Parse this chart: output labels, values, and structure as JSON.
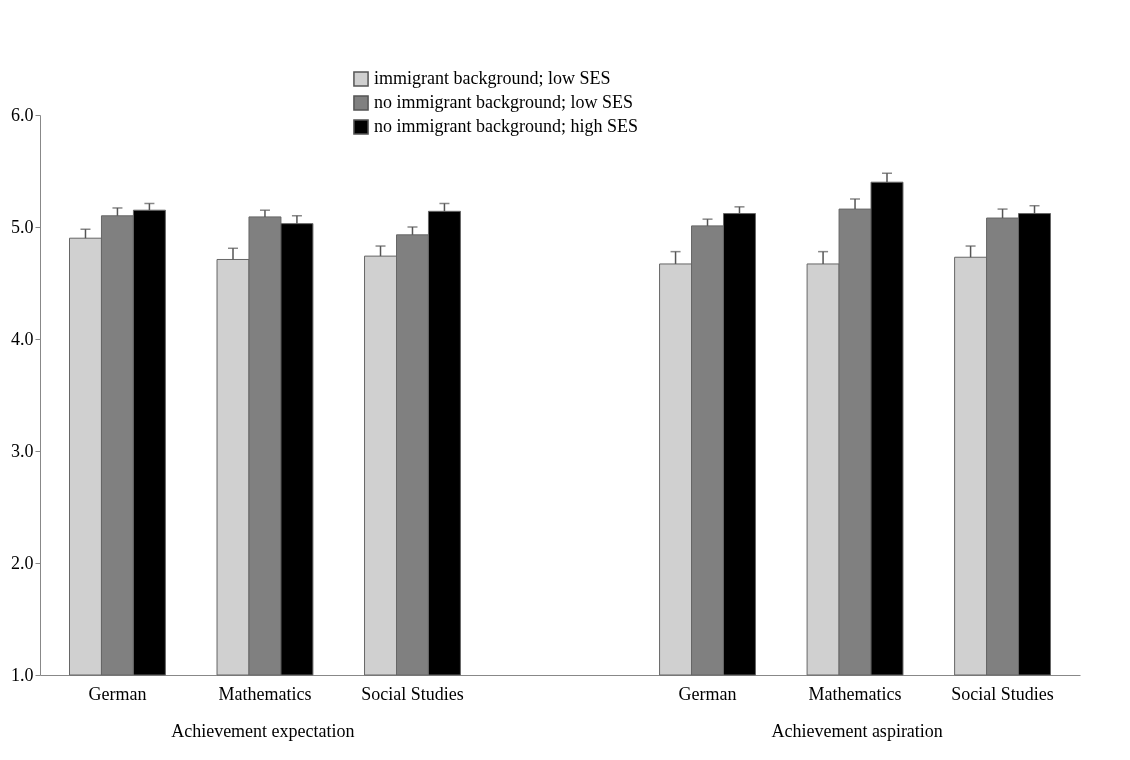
{
  "chart_data": {
    "type": "bar",
    "categories": [
      "German",
      "Mathematics",
      "Social Studies",
      null,
      "German",
      "Mathematics",
      "Social Studies"
    ],
    "series": [
      {
        "name": "immigrant background; low SES",
        "color": "#d0d0d0",
        "values": [
          4.9,
          4.71,
          4.74,
          null,
          4.67,
          4.67,
          4.73
        ],
        "errors": [
          [
            4.9,
            4.98
          ],
          [
            4.71,
            4.81
          ],
          [
            4.74,
            4.83
          ],
          null,
          [
            4.67,
            4.78
          ],
          [
            4.67,
            4.78
          ],
          [
            4.73,
            4.83
          ]
        ]
      },
      {
        "name": "no immigrant background; low SES",
        "color": "#808080",
        "values": [
          5.1,
          5.09,
          4.93,
          null,
          5.01,
          5.16,
          5.08
        ],
        "errors": [
          [
            5.1,
            5.17
          ],
          [
            5.09,
            5.15
          ],
          [
            4.93,
            5.0
          ],
          null,
          [
            5.01,
            5.07
          ],
          [
            5.16,
            5.25
          ],
          [
            5.08,
            5.16
          ]
        ]
      },
      {
        "name": "no immigrant background; high SES",
        "color": "#000000",
        "values": [
          5.15,
          5.03,
          5.14,
          null,
          5.12,
          5.4,
          5.12
        ],
        "errors": [
          [
            5.15,
            5.21
          ],
          [
            5.03,
            5.1
          ],
          [
            5.14,
            5.21
          ],
          null,
          [
            5.12,
            5.18
          ],
          [
            5.4,
            5.48
          ],
          [
            5.12,
            5.19
          ]
        ]
      }
    ],
    "ylim": [
      1.0,
      6.0
    ],
    "yticks": [
      {
        "value": 1,
        "label": "1.0"
      },
      {
        "value": 2,
        "label": "2.0"
      },
      {
        "value": 3,
        "label": "3.0"
      },
      {
        "value": 4,
        "label": "4.0"
      },
      {
        "value": 5,
        "label": "5.0"
      },
      {
        "value": 6,
        "label": "6.0"
      }
    ],
    "annotations": [
      "Achievement expectation",
      "Achievement aspiration"
    ],
    "legend": "top",
    "grid": false
  }
}
